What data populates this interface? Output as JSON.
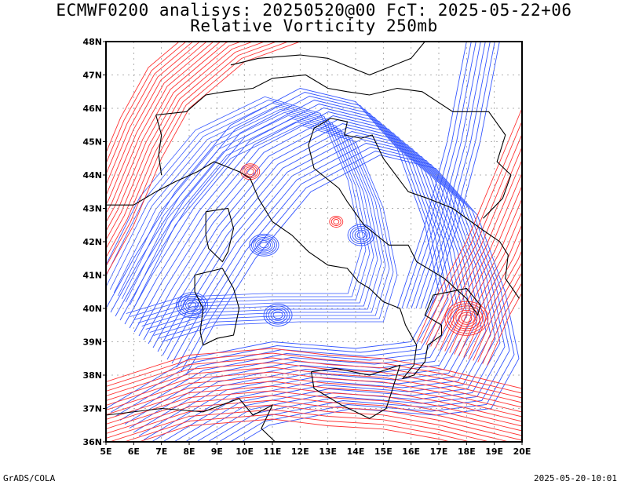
{
  "title_line1": "ECMWF0200 analisys: 20250520@00 FcT: 2025-05-22+06",
  "title_line2": "Relative Vorticity 250mb",
  "footer_left": "GrADS/COLA",
  "footer_right": "2025-05-20-10:01",
  "map": {
    "lon_range": [
      5,
      20
    ],
    "lat_range": [
      36,
      48
    ],
    "lon_ticks": [
      "5E",
      "6E",
      "7E",
      "8E",
      "9E",
      "10E",
      "11E",
      "12E",
      "13E",
      "14E",
      "15E",
      "16E",
      "17E",
      "18E",
      "19E",
      "20E"
    ],
    "lat_ticks": [
      "36N",
      "37N",
      "38N",
      "39N",
      "40N",
      "41N",
      "42N",
      "43N",
      "44N",
      "45N",
      "46N",
      "47N",
      "48N"
    ],
    "colors": {
      "positive_vorticity": "#ff3333",
      "negative_vorticity": "#3355ff",
      "coastline": "#000000",
      "grid": "#999999"
    }
  }
}
